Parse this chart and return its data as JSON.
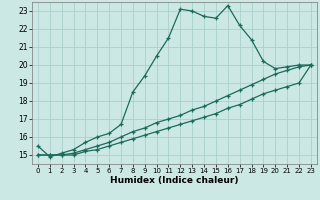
{
  "xlabel": "Humidex (Indice chaleur)",
  "background_color": "#cce8e5",
  "grid_color": "#aacfcb",
  "line_color": "#1a6b5a",
  "xlim": [
    -0.5,
    23.5
  ],
  "ylim": [
    14.5,
    23.5
  ],
  "yticks": [
    15,
    16,
    17,
    18,
    19,
    20,
    21,
    22,
    23
  ],
  "xticks": [
    0,
    1,
    2,
    3,
    4,
    5,
    6,
    7,
    8,
    9,
    10,
    11,
    12,
    13,
    14,
    15,
    16,
    17,
    18,
    19,
    20,
    21,
    22,
    23
  ],
  "line1_x": [
    0,
    1,
    2,
    3,
    4,
    5,
    6,
    7,
    8,
    9,
    10,
    11,
    12,
    13,
    14,
    15,
    16,
    17,
    18,
    19,
    20,
    21,
    22,
    23
  ],
  "line1_y": [
    15.5,
    14.9,
    15.1,
    15.3,
    15.7,
    16.0,
    16.2,
    16.7,
    18.5,
    19.4,
    20.5,
    21.5,
    23.1,
    23.0,
    22.7,
    22.6,
    23.3,
    22.2,
    21.4,
    20.2,
    19.8,
    19.9,
    20.0,
    20.0
  ],
  "line2_x": [
    0,
    1,
    2,
    3,
    4,
    5,
    6,
    7,
    8,
    9,
    10,
    11,
    12,
    13,
    14,
    15,
    16,
    17,
    18,
    19,
    20,
    21,
    22,
    23
  ],
  "line2_y": [
    15.0,
    15.0,
    15.0,
    15.1,
    15.3,
    15.5,
    15.7,
    16.0,
    16.3,
    16.5,
    16.8,
    17.0,
    17.2,
    17.5,
    17.7,
    18.0,
    18.3,
    18.6,
    18.9,
    19.2,
    19.5,
    19.7,
    19.9,
    20.0
  ],
  "line3_x": [
    0,
    1,
    2,
    3,
    4,
    5,
    6,
    7,
    8,
    9,
    10,
    11,
    12,
    13,
    14,
    15,
    16,
    17,
    18,
    19,
    20,
    21,
    22,
    23
  ],
  "line3_y": [
    15.0,
    15.0,
    15.0,
    15.0,
    15.2,
    15.3,
    15.5,
    15.7,
    15.9,
    16.1,
    16.3,
    16.5,
    16.7,
    16.9,
    17.1,
    17.3,
    17.6,
    17.8,
    18.1,
    18.4,
    18.6,
    18.8,
    19.0,
    20.0
  ]
}
